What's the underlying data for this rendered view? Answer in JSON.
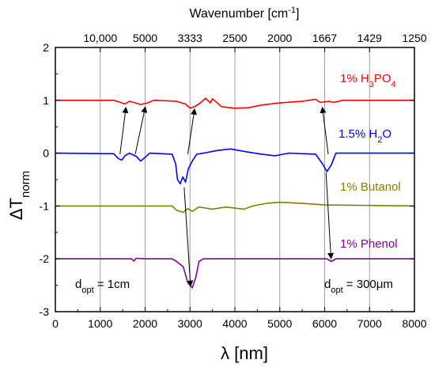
{
  "chart_data": {
    "type": "line",
    "xlabel": "λ [nm]",
    "ylabel": "ΔT",
    "ylabel_sub": "norm",
    "top_axis_label": "Wavenumber [cm",
    "top_axis_label_sup": "-1",
    "top_axis_label_end": "]",
    "xlim": [
      0,
      8000
    ],
    "ylim": [
      -3,
      2
    ],
    "x_ticks": [
      "0",
      "1000",
      "2000",
      "3000",
      "4000",
      "5000",
      "6000",
      "7000",
      "8000"
    ],
    "y_ticks": [
      "2",
      "1",
      "0",
      "-1",
      "-2",
      "-3"
    ],
    "top_ticks": [
      {
        "label": "10,000",
        "x": 1000
      },
      {
        "label": "5000",
        "x": 2000
      },
      {
        "label": "3333",
        "x": 3000
      },
      {
        "label": "2500",
        "x": 4000
      },
      {
        "label": "2000",
        "x": 5000
      },
      {
        "label": "1667",
        "x": 6000
      },
      {
        "label": "1429",
        "x": 7000
      },
      {
        "label": "1250",
        "x": 8000
      }
    ],
    "grid_x": [
      1000,
      2000,
      3000,
      4000,
      5000,
      6000,
      7000
    ],
    "series": [
      {
        "label_main": "1% H",
        "label_sub1": "3",
        "label_mid": "PO",
        "label_sub2": "4",
        "color": "#ff0000",
        "points": [
          [
            0,
            1.0
          ],
          [
            1300,
            1.0
          ],
          [
            1450,
            0.96
          ],
          [
            1550,
            0.93
          ],
          [
            1650,
            0.98
          ],
          [
            1750,
            0.96
          ],
          [
            1900,
            0.92
          ],
          [
            2050,
            0.95
          ],
          [
            2200,
            1.0
          ],
          [
            2500,
            0.99
          ],
          [
            2700,
            0.98
          ],
          [
            2900,
            0.93
          ],
          [
            3000,
            0.85
          ],
          [
            3100,
            0.88
          ],
          [
            3200,
            0.93
          ],
          [
            3350,
            1.04
          ],
          [
            3450,
            0.95
          ],
          [
            3500,
            1.03
          ],
          [
            3700,
            0.88
          ],
          [
            4000,
            0.85
          ],
          [
            4300,
            0.86
          ],
          [
            4600,
            0.91
          ],
          [
            5000,
            0.95
          ],
          [
            5500,
            0.98
          ],
          [
            5800,
            1.02
          ],
          [
            5900,
            0.96
          ],
          [
            6100,
            0.98
          ],
          [
            6200,
            0.96
          ],
          [
            6400,
            1.0
          ],
          [
            8000,
            1.0
          ]
        ]
      },
      {
        "label_main": "1.5% H",
        "label_sub1": "2",
        "label_mid": "O",
        "label_sub2": "",
        "color": "#0000ff",
        "points": [
          [
            0,
            0.0
          ],
          [
            1300,
            -0.01
          ],
          [
            1400,
            -0.1
          ],
          [
            1480,
            -0.13
          ],
          [
            1550,
            -0.05
          ],
          [
            1650,
            0.0
          ],
          [
            1800,
            -0.06
          ],
          [
            1900,
            -0.15
          ],
          [
            2000,
            -0.08
          ],
          [
            2100,
            0.0
          ],
          [
            2600,
            -0.02
          ],
          [
            2680,
            -0.2
          ],
          [
            2720,
            -0.5
          ],
          [
            2780,
            -0.58
          ],
          [
            2840,
            -0.45
          ],
          [
            2900,
            -0.55
          ],
          [
            2960,
            -0.3
          ],
          [
            3050,
            -0.15
          ],
          [
            3150,
            -0.02
          ],
          [
            3300,
            0.0
          ],
          [
            3600,
            0.05
          ],
          [
            3900,
            0.08
          ],
          [
            4100,
            0.05
          ],
          [
            4300,
            0.02
          ],
          [
            4600,
            -0.02
          ],
          [
            4900,
            -0.05
          ],
          [
            5200,
            0.0
          ],
          [
            5800,
            -0.02
          ],
          [
            5950,
            -0.2
          ],
          [
            6050,
            -0.35
          ],
          [
            6150,
            -0.22
          ],
          [
            6250,
            0.0
          ],
          [
            8000,
            0.0
          ]
        ]
      },
      {
        "label_main": "1% Butanol",
        "label_sub1": "",
        "label_mid": "",
        "label_sub2": "",
        "color": "#808000",
        "points": [
          [
            0,
            -1.0
          ],
          [
            2600,
            -1.0
          ],
          [
            2700,
            -1.08
          ],
          [
            2850,
            -1.12
          ],
          [
            2950,
            -1.05
          ],
          [
            3050,
            -1.1
          ],
          [
            3200,
            -1.02
          ],
          [
            3500,
            -1.06
          ],
          [
            3800,
            -1.02
          ],
          [
            4200,
            -1.06
          ],
          [
            4400,
            -1.0
          ],
          [
            4700,
            -0.95
          ],
          [
            5000,
            -0.93
          ],
          [
            5500,
            -0.95
          ],
          [
            6000,
            -0.98
          ],
          [
            8000,
            -1.0
          ]
        ]
      },
      {
        "label_main": "1% Phenol",
        "label_sub1": "",
        "label_mid": "",
        "label_sub2": "",
        "color": "#8000a0",
        "points": [
          [
            0,
            -2.0
          ],
          [
            1700,
            -2.0
          ],
          [
            1750,
            -2.04
          ],
          [
            1800,
            -1.99
          ],
          [
            2000,
            -2.0
          ],
          [
            2600,
            -2.0
          ],
          [
            2700,
            -2.05
          ],
          [
            2850,
            -2.15
          ],
          [
            2950,
            -2.45
          ],
          [
            3050,
            -2.55
          ],
          [
            3130,
            -2.35
          ],
          [
            3200,
            -2.05
          ],
          [
            3300,
            -2.0
          ],
          [
            6050,
            -2.0
          ],
          [
            6150,
            -2.05
          ],
          [
            6250,
            -2.0
          ],
          [
            8000,
            -2.0
          ]
        ]
      }
    ],
    "arrows": [
      [
        [
          1440,
          -0.02
        ],
        [
          1570,
          0.85
        ]
      ],
      [
        [
          1780,
          -0.02
        ],
        [
          2000,
          0.86
        ]
      ],
      [
        [
          2950,
          -0.02
        ],
        [
          3100,
          0.82
        ]
      ],
      [
        [
          6080,
          -0.02
        ],
        [
          5950,
          0.85
        ]
      ],
      [
        [
          2870,
          -0.65
        ],
        [
          3010,
          -2.5
        ]
      ],
      [
        [
          6030,
          -0.37
        ],
        [
          6140,
          -1.98
        ]
      ]
    ],
    "annotations": {
      "dopt_left_main": "d",
      "dopt_left_sub": "opt",
      "dopt_left_value": " = 1cm",
      "dopt_right_main": "d",
      "dopt_right_sub": "opt",
      "dopt_right_value": " = 300μm"
    }
  }
}
